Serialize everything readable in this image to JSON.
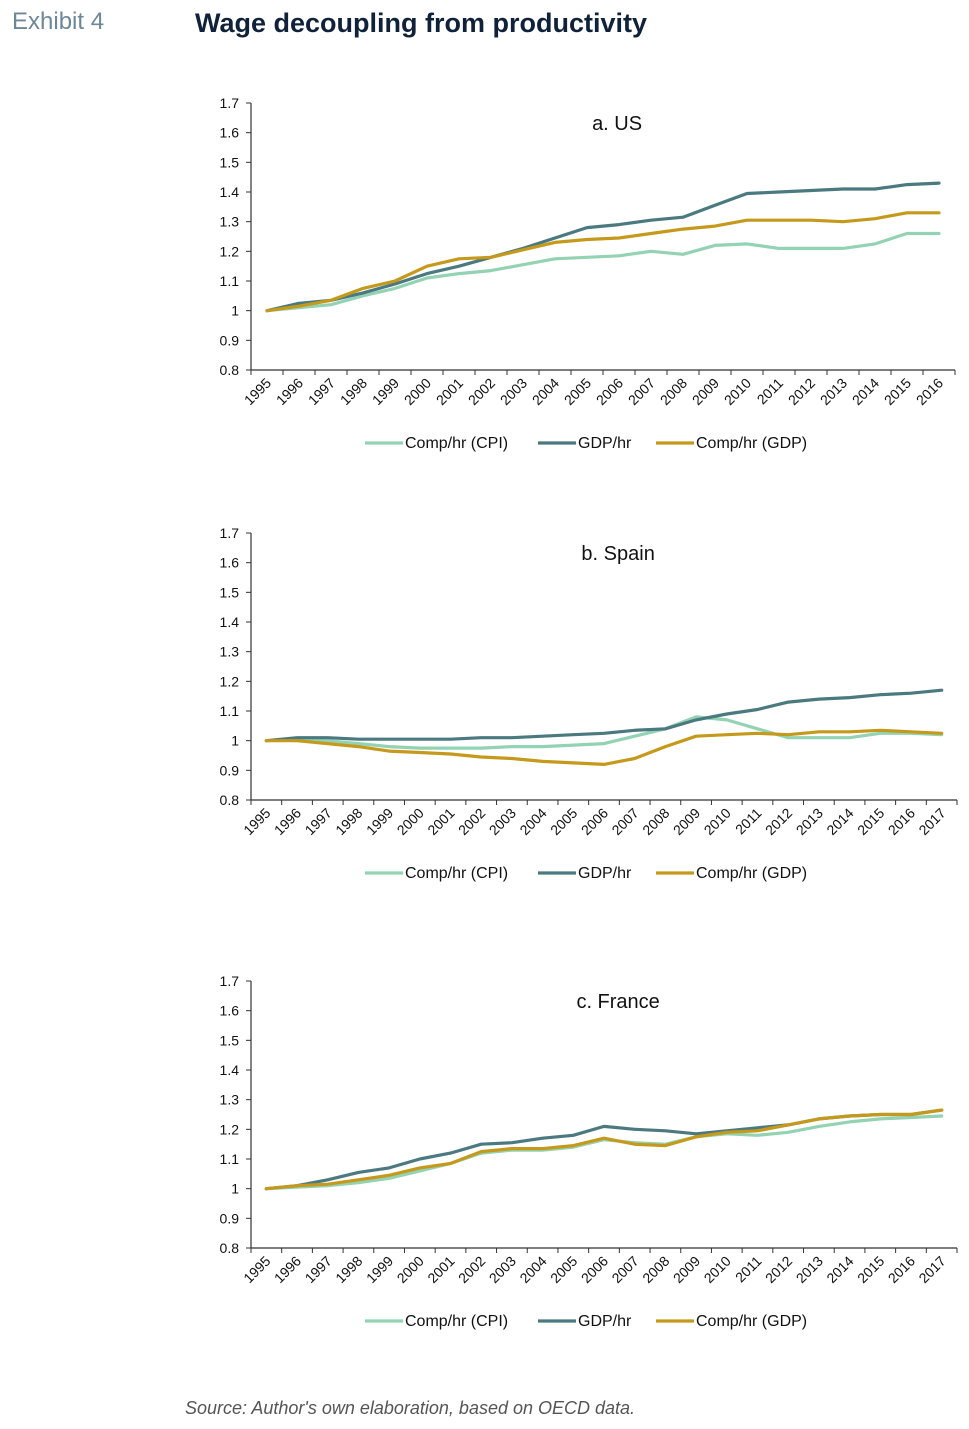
{
  "header": {
    "exhibit_label": "Exhibit 4",
    "title": "Wage decoupling from productivity"
  },
  "footer": {
    "source": "Source: Author's own elaboration, based on OECD data."
  },
  "colors": {
    "comp_cpi": "#93d3b3",
    "gdp_hr": "#4a7a7f",
    "comp_gdp": "#c59a1c",
    "axis": "#333333"
  },
  "chart_data": [
    {
      "type": "line",
      "title": "a. US",
      "categories": [
        "1995",
        "1996",
        "1997",
        "1998",
        "1999",
        "2000",
        "2001",
        "2002",
        "2003",
        "2004",
        "2005",
        "2006",
        "2007",
        "2008",
        "2009",
        "2010",
        "2011",
        "2012",
        "2013",
        "2014",
        "2015",
        "2016"
      ],
      "y_ticks": [
        "1.7",
        "1.6",
        "1.5",
        "1.4",
        "1.3",
        "1.2",
        "1.1",
        "1",
        "0.9",
        "0.8"
      ],
      "ylim": [
        0.8,
        1.7
      ],
      "legend_position": "bottom",
      "series": [
        {
          "name": "Comp/hr (CPI)",
          "color_key": "comp_cpi",
          "values": [
            1.0,
            1.01,
            1.02,
            1.05,
            1.075,
            1.11,
            1.125,
            1.135,
            1.155,
            1.175,
            1.18,
            1.185,
            1.2,
            1.19,
            1.22,
            1.225,
            1.21,
            1.21,
            1.21,
            1.225,
            1.26,
            1.26
          ]
        },
        {
          "name": "GDP/hr",
          "color_key": "gdp_hr",
          "values": [
            1.0,
            1.025,
            1.035,
            1.06,
            1.09,
            1.125,
            1.15,
            1.18,
            1.21,
            1.245,
            1.28,
            1.29,
            1.305,
            1.315,
            1.355,
            1.395,
            1.4,
            1.405,
            1.41,
            1.41,
            1.425,
            1.43
          ]
        },
        {
          "name": "Comp/hr (GDP)",
          "color_key": "comp_gdp",
          "values": [
            1.0,
            1.015,
            1.035,
            1.075,
            1.1,
            1.15,
            1.175,
            1.18,
            1.205,
            1.23,
            1.24,
            1.245,
            1.26,
            1.275,
            1.285,
            1.305,
            1.305,
            1.305,
            1.3,
            1.31,
            1.33,
            1.33
          ]
        }
      ]
    },
    {
      "type": "line",
      "title": "b. Spain",
      "categories": [
        "1995",
        "1996",
        "1997",
        "1998",
        "1999",
        "2000",
        "2001",
        "2002",
        "2003",
        "2004",
        "2005",
        "2006",
        "2007",
        "2008",
        "2009",
        "2010",
        "2011",
        "2012",
        "2013",
        "2014",
        "2015",
        "2016",
        "2017"
      ],
      "y_ticks": [
        "1.7",
        "1.6",
        "1.5",
        "1.4",
        "1.3",
        "1.2",
        "1.1",
        "1",
        "0.9",
        "0.8"
      ],
      "ylim": [
        0.8,
        1.7
      ],
      "legend_position": "bottom",
      "series": [
        {
          "name": "Comp/hr (CPI)",
          "color_key": "comp_cpi",
          "values": [
            1.0,
            1.005,
            1.0,
            0.99,
            0.98,
            0.975,
            0.975,
            0.975,
            0.98,
            0.98,
            0.985,
            0.99,
            1.015,
            1.04,
            1.08,
            1.07,
            1.04,
            1.01,
            1.01,
            1.01,
            1.025,
            1.025,
            1.02
          ]
        },
        {
          "name": "GDP/hr",
          "color_key": "gdp_hr",
          "values": [
            1.0,
            1.01,
            1.01,
            1.005,
            1.005,
            1.005,
            1.005,
            1.01,
            1.01,
            1.015,
            1.02,
            1.025,
            1.035,
            1.04,
            1.07,
            1.09,
            1.105,
            1.13,
            1.14,
            1.145,
            1.155,
            1.16,
            1.17
          ]
        },
        {
          "name": "Comp/hr (GDP)",
          "color_key": "comp_gdp",
          "values": [
            1.0,
            1.0,
            0.99,
            0.98,
            0.965,
            0.96,
            0.955,
            0.945,
            0.94,
            0.93,
            0.925,
            0.92,
            0.94,
            0.98,
            1.015,
            1.02,
            1.025,
            1.02,
            1.03,
            1.03,
            1.035,
            1.03,
            1.025
          ]
        }
      ]
    },
    {
      "type": "line",
      "title": "c. France",
      "categories": [
        "1995",
        "1996",
        "1997",
        "1998",
        "1999",
        "2000",
        "2001",
        "2002",
        "2003",
        "2004",
        "2005",
        "2006",
        "2007",
        "2008",
        "2009",
        "2010",
        "2011",
        "2012",
        "2013",
        "2014",
        "2015",
        "2016",
        "2017"
      ],
      "y_ticks": [
        "1.7",
        "1.6",
        "1.5",
        "1.4",
        "1.3",
        "1.2",
        "1.1",
        "1",
        "0.9",
        "0.8"
      ],
      "ylim": [
        0.8,
        1.7
      ],
      "legend_position": "bottom",
      "series": [
        {
          "name": "Comp/hr (CPI)",
          "color_key": "comp_cpi",
          "values": [
            1.0,
            1.005,
            1.01,
            1.02,
            1.035,
            1.06,
            1.085,
            1.12,
            1.13,
            1.13,
            1.14,
            1.165,
            1.155,
            1.15,
            1.175,
            1.185,
            1.18,
            1.19,
            1.21,
            1.225,
            1.235,
            1.24,
            1.245
          ]
        },
        {
          "name": "GDP/hr",
          "color_key": "gdp_hr",
          "values": [
            1.0,
            1.01,
            1.03,
            1.055,
            1.07,
            1.1,
            1.12,
            1.15,
            1.155,
            1.17,
            1.18,
            1.21,
            1.2,
            1.195,
            1.185,
            1.195,
            1.205,
            1.215,
            1.235,
            1.245,
            1.25,
            1.25,
            1.265
          ]
        },
        {
          "name": "Comp/hr (GDP)",
          "color_key": "comp_gdp",
          "values": [
            1.0,
            1.01,
            1.015,
            1.03,
            1.045,
            1.07,
            1.085,
            1.125,
            1.135,
            1.135,
            1.145,
            1.17,
            1.15,
            1.145,
            1.175,
            1.19,
            1.195,
            1.215,
            1.235,
            1.245,
            1.25,
            1.25,
            1.265
          ]
        }
      ]
    }
  ]
}
